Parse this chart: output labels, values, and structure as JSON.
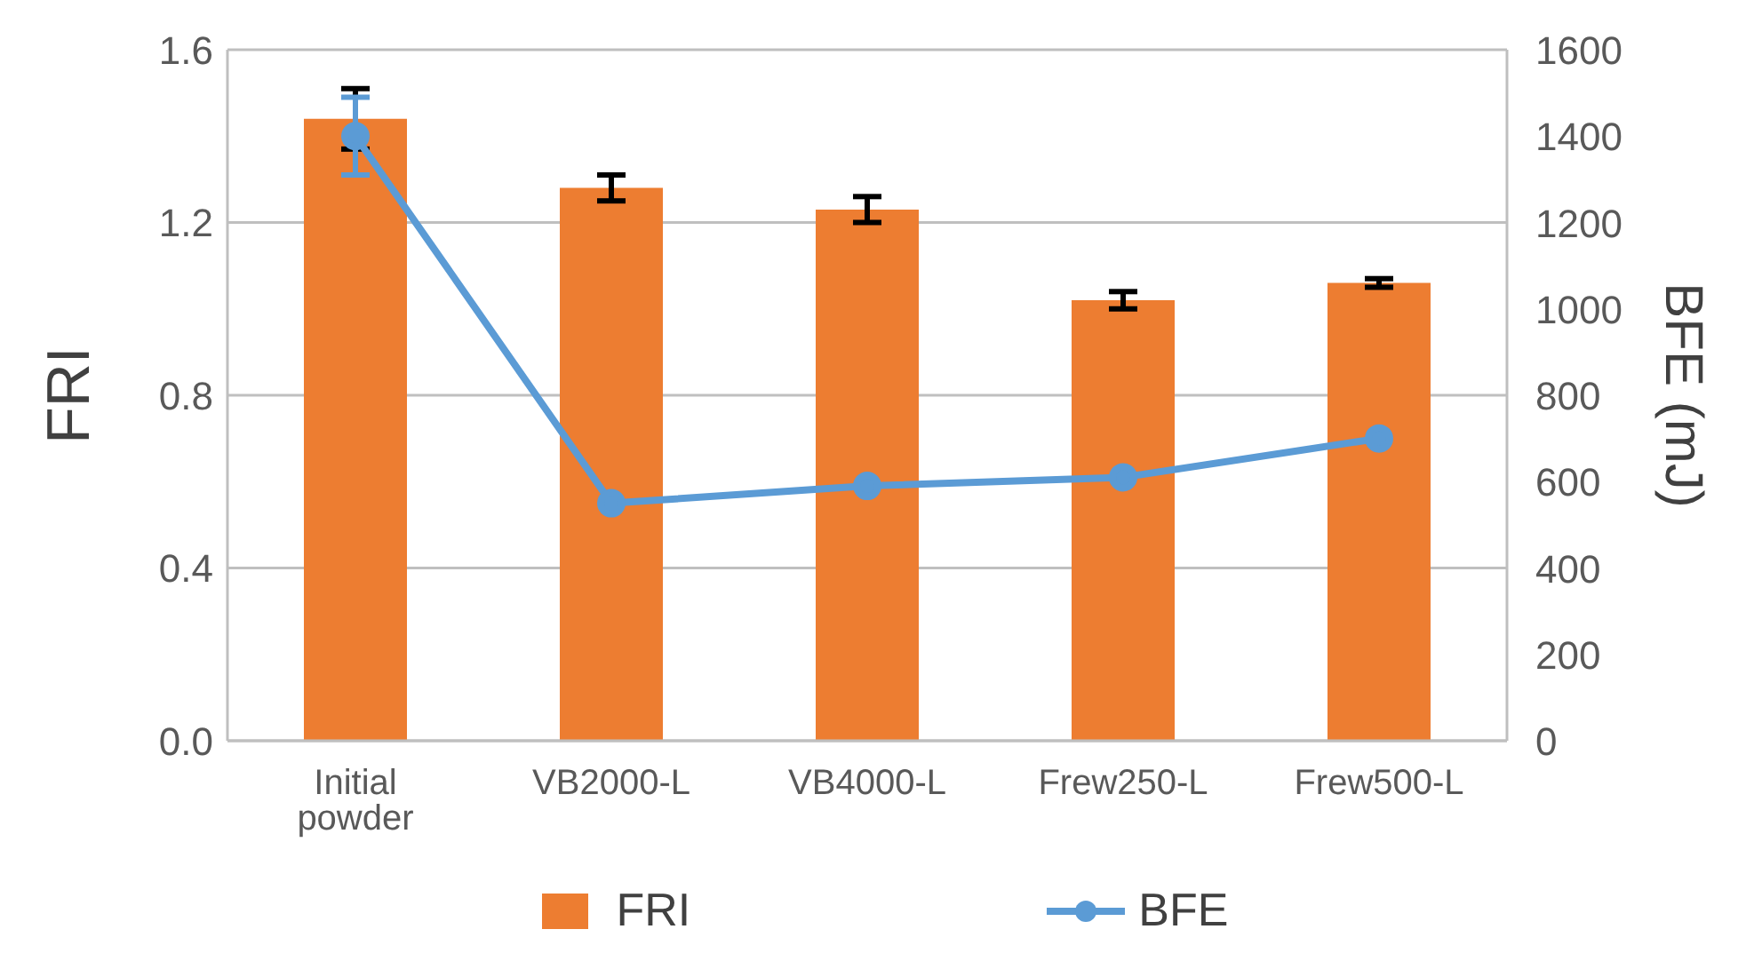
{
  "chart_data": {
    "type": "bar",
    "categories": [
      "Initial powder",
      "VB2000-L",
      "VB4000-L",
      "Frew250-L",
      "Frew500-L"
    ],
    "series": [
      {
        "name": "FRI",
        "color": "#ed7d31",
        "values": [
          1.44,
          1.28,
          1.23,
          1.02,
          1.06
        ],
        "errors": [
          0.07,
          0.03,
          0.03,
          0.02,
          0.01
        ]
      },
      {
        "name": "BFE",
        "type": "line",
        "axis": "y2",
        "color": "#5b9bd5",
        "values": [
          1400,
          550,
          590,
          610,
          700
        ],
        "errors": [
          90,
          null,
          null,
          null,
          null
        ]
      }
    ],
    "ylabel": "FRI",
    "y2label": "BFE (mJ)",
    "ylim": [
      0,
      1.6
    ],
    "yticks": [
      {
        "value": 0,
        "label": "0.0"
      },
      {
        "value": 0.4,
        "label": "0.4"
      },
      {
        "value": 0.8,
        "label": "0.8"
      },
      {
        "value": 1.2,
        "label": "1.2"
      },
      {
        "value": 1.6,
        "label": "1.6"
      }
    ],
    "y2lim": [
      0,
      1600
    ],
    "y2ticks": [
      0,
      200,
      400,
      600,
      800,
      1000,
      1200,
      1400,
      1600
    ],
    "grid": "y",
    "legend": "bottom",
    "marker": "circle"
  }
}
